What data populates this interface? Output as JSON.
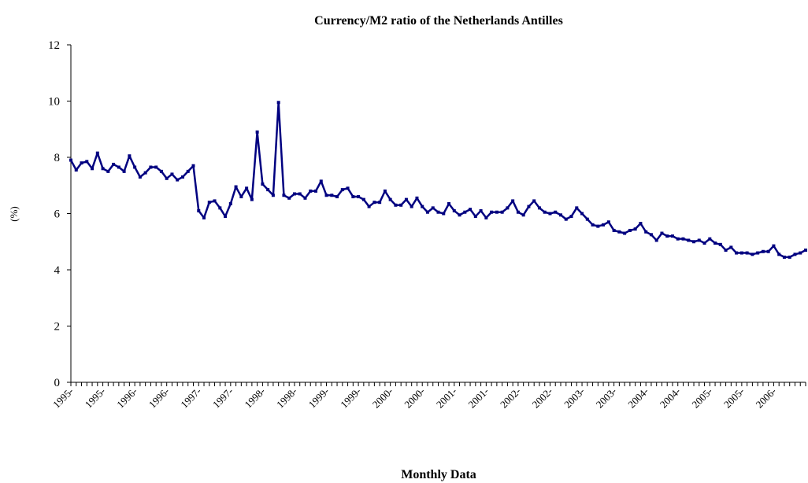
{
  "chart_data": {
    "type": "line",
    "title": "Currency/M2 ratio of the Netherlands Antilles",
    "y_label": "(%)",
    "x_label": "Monthly Data",
    "color": "#000080",
    "ylim": [
      0,
      12
    ],
    "yticks": [
      0,
      2,
      4,
      6,
      8,
      10,
      12
    ],
    "grid": false,
    "categories": [
      "1995-",
      null,
      null,
      null,
      null,
      null,
      "1995-",
      null,
      null,
      null,
      null,
      null,
      "1996-",
      null,
      null,
      null,
      null,
      null,
      "1996-",
      null,
      null,
      null,
      null,
      null,
      "1997-",
      null,
      null,
      null,
      null,
      null,
      "1997-",
      null,
      null,
      null,
      null,
      null,
      "1998-",
      null,
      null,
      null,
      null,
      null,
      "1998-",
      null,
      null,
      null,
      null,
      null,
      "1999-",
      null,
      null,
      null,
      null,
      null,
      "1999-",
      null,
      null,
      null,
      null,
      null,
      "2000-",
      null,
      null,
      null,
      null,
      null,
      "2000-",
      null,
      null,
      null,
      null,
      null,
      "2001-",
      null,
      null,
      null,
      null,
      null,
      "2001-",
      null,
      null,
      null,
      null,
      null,
      "2002-",
      null,
      null,
      null,
      null,
      null,
      "2002-",
      null,
      null,
      null,
      null,
      null,
      "2003-",
      null,
      null,
      null,
      null,
      null,
      "2003-",
      null,
      null,
      null,
      null,
      null,
      "2004-",
      null,
      null,
      null,
      null,
      null,
      "2004-",
      null,
      null,
      null,
      null,
      null,
      "2005-",
      null,
      null,
      null,
      null,
      null,
      "2005-",
      null,
      null,
      null,
      null,
      null,
      "2006-",
      null,
      null,
      null,
      null,
      null,
      null
    ],
    "values": [
      7.9,
      7.55,
      7.8,
      7.85,
      7.6,
      8.15,
      7.6,
      7.5,
      7.75,
      7.65,
      7.5,
      8.05,
      7.65,
      7.3,
      7.45,
      7.65,
      7.65,
      7.5,
      7.25,
      7.4,
      7.2,
      7.3,
      7.5,
      7.7,
      6.1,
      5.85,
      6.4,
      6.45,
      6.2,
      5.9,
      6.35,
      6.95,
      6.6,
      6.9,
      6.5,
      8.9,
      7.05,
      6.85,
      6.65,
      9.95,
      6.65,
      6.55,
      6.7,
      6.7,
      6.55,
      6.8,
      6.8,
      7.15,
      6.65,
      6.65,
      6.6,
      6.85,
      6.9,
      6.6,
      6.6,
      6.5,
      6.25,
      6.4,
      6.4,
      6.8,
      6.5,
      6.3,
      6.3,
      6.5,
      6.25,
      6.55,
      6.25,
      6.05,
      6.2,
      6.05,
      6.0,
      6.35,
      6.1,
      5.95,
      6.05,
      6.15,
      5.9,
      6.1,
      5.85,
      6.05,
      6.05,
      6.05,
      6.2,
      6.45,
      6.05,
      5.95,
      6.25,
      6.45,
      6.2,
      6.05,
      6.0,
      6.05,
      5.95,
      5.8,
      5.9,
      6.2,
      6.0,
      5.8,
      5.6,
      5.55,
      5.6,
      5.7,
      5.4,
      5.35,
      5.3,
      5.4,
      5.45,
      5.65,
      5.35,
      5.25,
      5.05,
      5.3,
      5.2,
      5.2,
      5.1,
      5.1,
      5.05,
      5.0,
      5.05,
      4.95,
      5.1,
      4.95,
      4.9,
      4.7,
      4.8,
      4.6,
      4.6,
      4.6,
      4.55,
      4.6,
      4.65,
      4.65,
      4.85,
      4.55,
      4.45,
      4.45,
      4.55,
      4.6,
      4.7
    ]
  }
}
